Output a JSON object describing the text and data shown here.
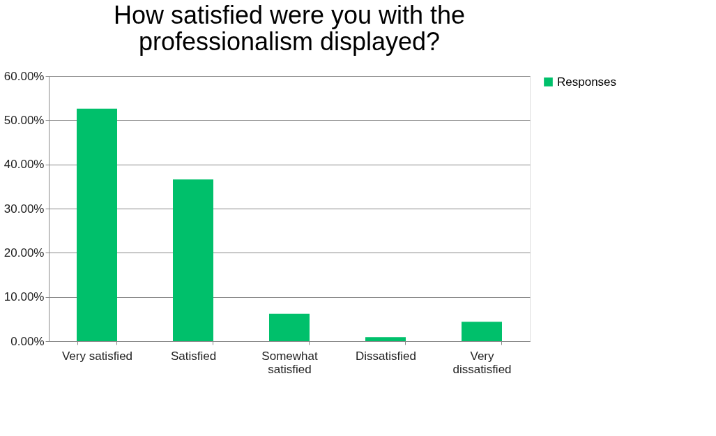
{
  "chart_data": {
    "type": "bar",
    "title": [
      "How satisfied were you with the",
      "professionalism displayed?"
    ],
    "categories": [
      "Very satisfied",
      "Satisfied",
      "Somewhat satisfied",
      "Dissatisfied",
      "Very dissatisfied"
    ],
    "series": [
      {
        "name": "Responses",
        "color": "#00c06b",
        "values": [
          52.6,
          36.6,
          6.2,
          0.9,
          4.4
        ]
      }
    ],
    "ylim": [
      0,
      60
    ],
    "yticks": [
      {
        "value": 0,
        "label": "0.00%"
      },
      {
        "value": 10,
        "label": "10.00%"
      },
      {
        "value": 20,
        "label": "20.00%"
      },
      {
        "value": 30,
        "label": "30.00%"
      },
      {
        "value": 40,
        "label": "40.00%"
      },
      {
        "value": 50,
        "label": "50.00%"
      },
      {
        "value": 60,
        "label": "60.00%"
      }
    ],
    "grid": "y",
    "legend": "right"
  }
}
